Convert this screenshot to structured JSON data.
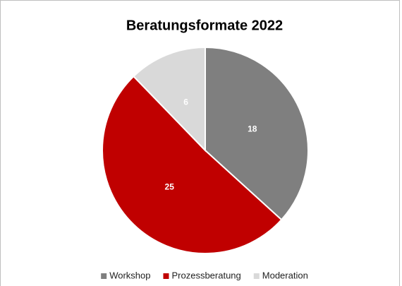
{
  "chart_data": {
    "type": "pie",
    "title": "Beratungsformate 2022",
    "categories": [
      "Workshop",
      "Prozessberatung",
      "Moderation"
    ],
    "values": [
      18,
      25,
      6
    ],
    "colors": [
      "#7f7f7f",
      "#c00000",
      "#d9d9d9"
    ],
    "legend": "bottom"
  }
}
